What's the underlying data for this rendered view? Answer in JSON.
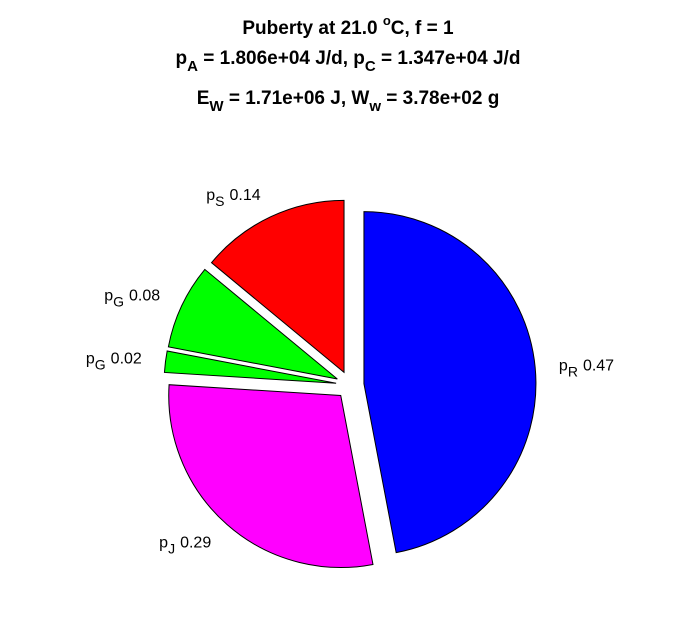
{
  "chart_data": {
    "type": "pie",
    "title": [
      [
        "Puberty at 21.0 ",
        "o",
        "C, f = 1"
      ],
      [
        "p",
        "A",
        " = 1.806e+04 J/d,  p",
        "C",
        " = 1.347e+04 J/d"
      ],
      [
        "E",
        "W",
        " = 1.71e+06 J, W",
        "w",
        " = 3.78e+02 g"
      ]
    ],
    "labels": [
      [
        "p",
        "R"
      ],
      [
        "p",
        "J"
      ],
      [
        "p",
        "G"
      ],
      [
        "p",
        "G"
      ],
      [
        "p",
        "S"
      ]
    ],
    "values": [
      0.47,
      0.29,
      0.02,
      0.08,
      0.14
    ],
    "colors": [
      "#0000ff",
      "#ff00ff",
      "#00ff00",
      "#00ff00",
      "#ff0000"
    ]
  }
}
